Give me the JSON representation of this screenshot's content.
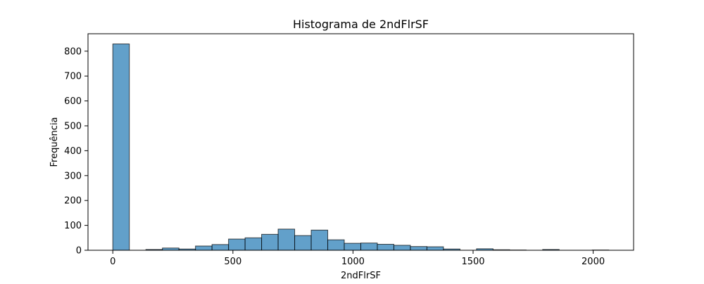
{
  "chart_data": {
    "type": "bar",
    "title": "Histograma de 2ndFlrSF",
    "xlabel": "2ndFlrSF",
    "ylabel": "Frequência",
    "xlim": [
      -103.3,
      2168.3
    ],
    "ylim": [
      0,
      870
    ],
    "xticks": [
      0,
      500,
      1000,
      1500,
      2000
    ],
    "yticks": [
      0,
      100,
      200,
      300,
      400,
      500,
      600,
      700,
      800
    ],
    "bin_edges": [
      0,
      68.83,
      137.67,
      206.5,
      275.33,
      344.17,
      413,
      481.83,
      550.67,
      619.5,
      688.33,
      757.17,
      826,
      894.83,
      963.67,
      1032.5,
      1101.33,
      1170.17,
      1239,
      1307.83,
      1376.67,
      1445.5,
      1514.33,
      1583.17,
      1652,
      1720.83,
      1789.67,
      1858.5,
      1927.33,
      1996.17,
      2065
    ],
    "values": [
      829,
      0,
      3,
      9,
      5,
      17,
      23,
      45,
      50,
      64,
      85,
      59,
      81,
      42,
      28,
      29,
      24,
      20,
      15,
      14,
      5,
      0,
      6,
      2,
      1,
      0,
      3,
      0,
      0,
      1
    ],
    "bar_color": "#1f77b4",
    "bar_opacity": 0.7,
    "edge_color": "#000000",
    "grid": false
  }
}
